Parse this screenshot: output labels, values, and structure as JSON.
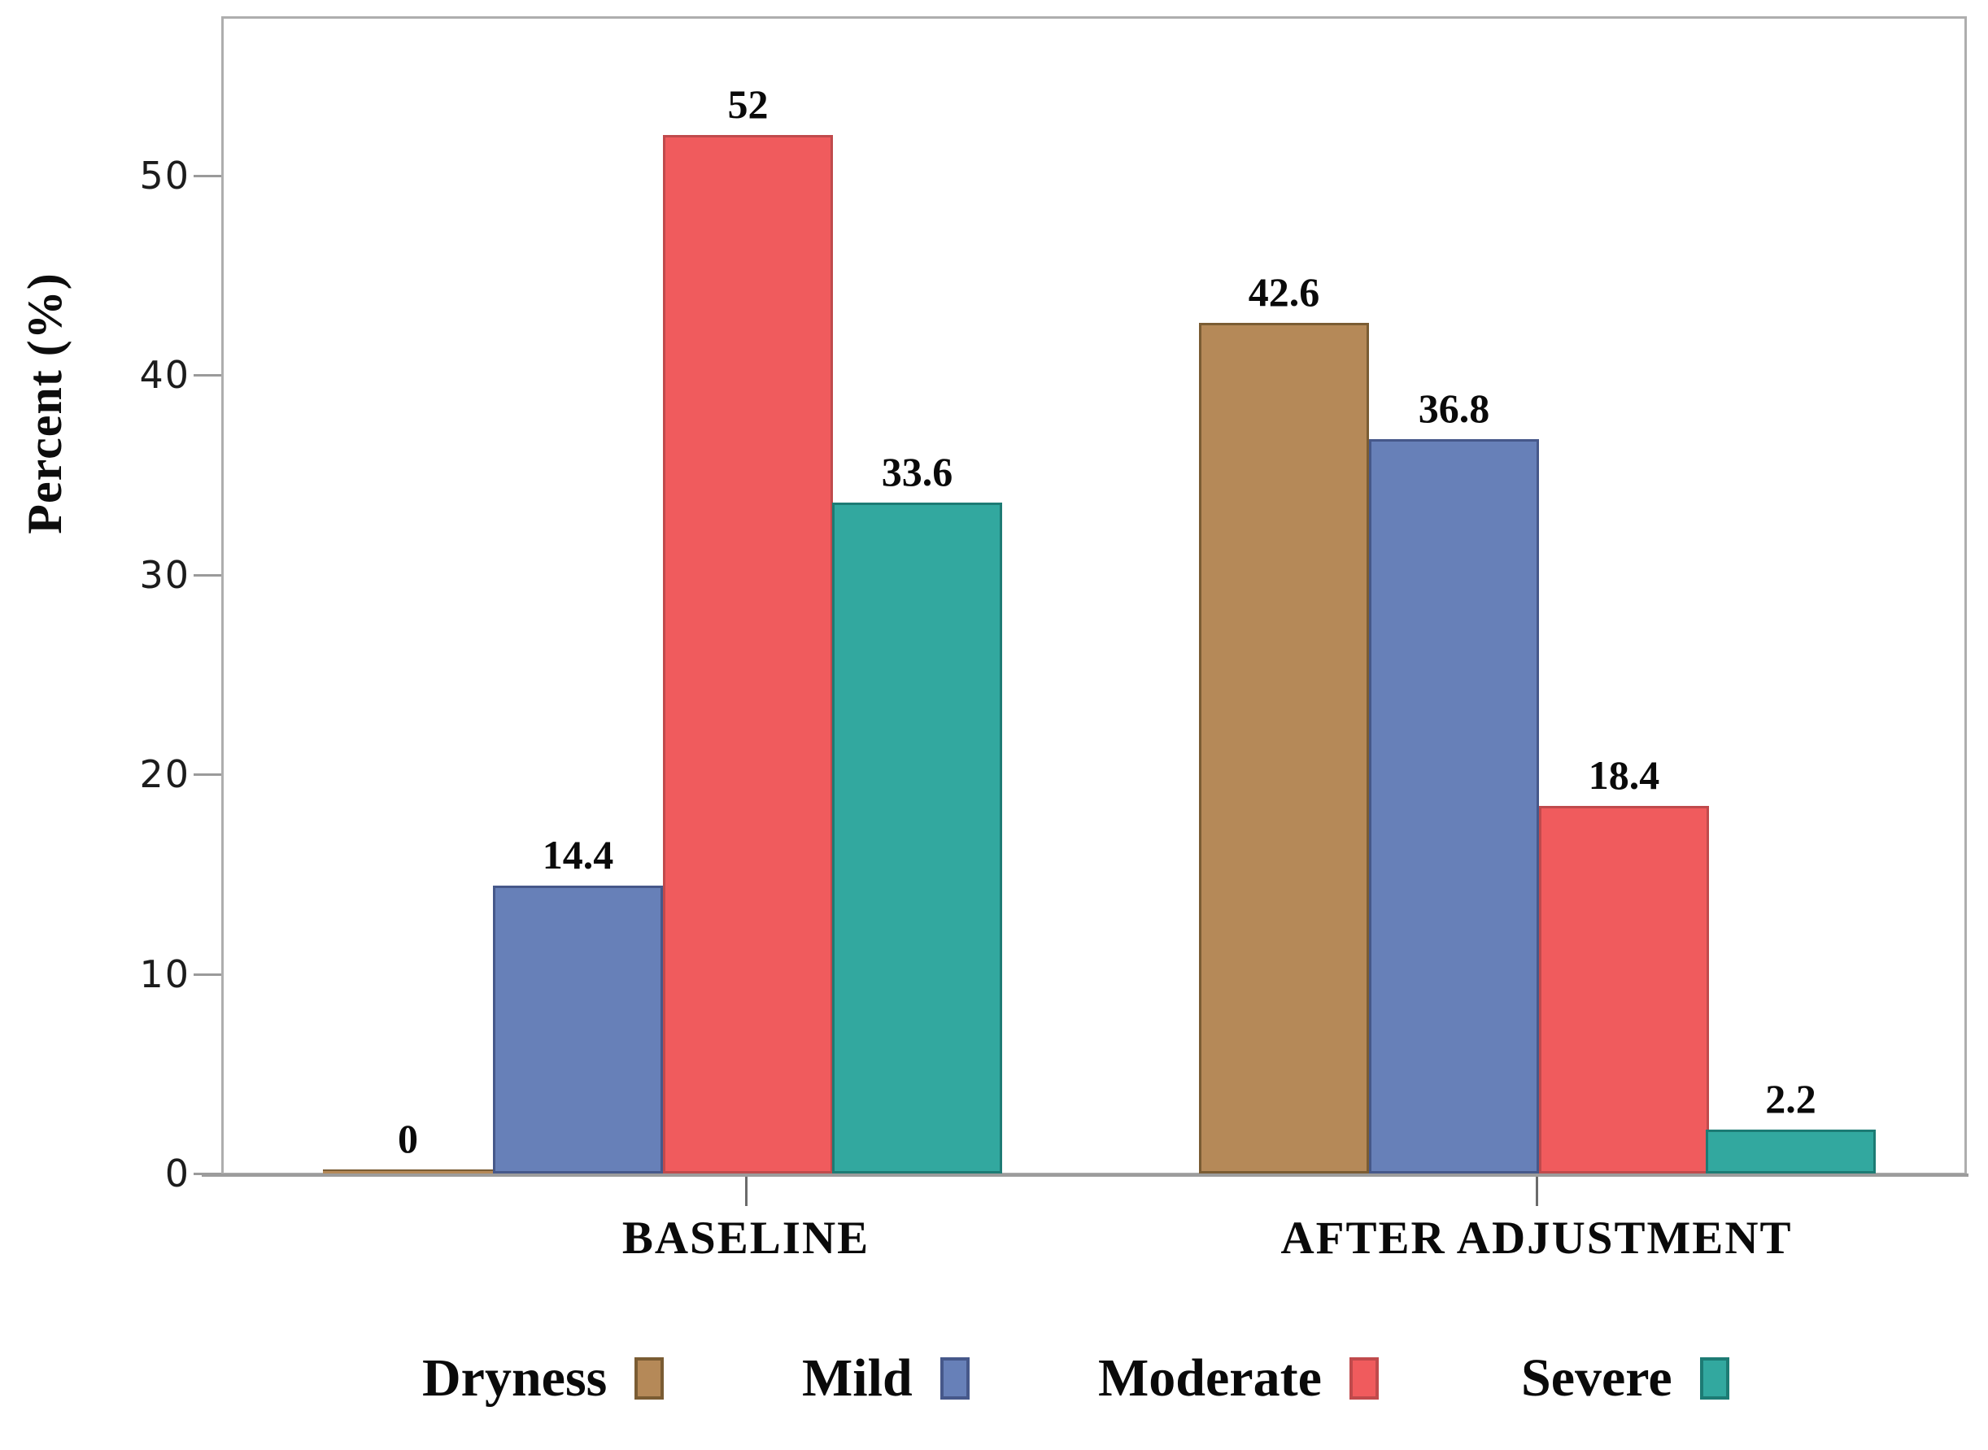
{
  "chart_data": {
    "type": "bar",
    "title": "",
    "ylabel": "Percent (%)",
    "xlabel": "",
    "ylim": [
      0,
      58
    ],
    "yticks": [
      0,
      10,
      20,
      30,
      40,
      50
    ],
    "grid": false,
    "legend_position": "bottom",
    "categories": [
      "BASELINE",
      "AFTER ADJUSTMENT"
    ],
    "series": [
      {
        "name": "Dryness",
        "color": "#b58958",
        "border_color": "#7a5c33",
        "values": [
          0,
          42.6
        ]
      },
      {
        "name": "Mild",
        "color": "#6780b8",
        "border_color": "#46588a",
        "values": [
          14.4,
          36.8
        ]
      },
      {
        "name": "Moderate",
        "color": "#f05b5d",
        "border_color": "#c04a4c",
        "values": [
          52,
          18.4
        ]
      },
      {
        "name": "Severe",
        "color": "#32a89f",
        "border_color": "#1d7b74",
        "values": [
          33.6,
          2.2
        ]
      }
    ],
    "bar_labels": [
      [
        "0",
        "14.4",
        "52",
        "33.6"
      ],
      [
        "42.6",
        "36.8",
        "18.4",
        "2.2"
      ]
    ],
    "frame_color": "#aeaeae",
    "axis_color": "#9c9c9c"
  }
}
